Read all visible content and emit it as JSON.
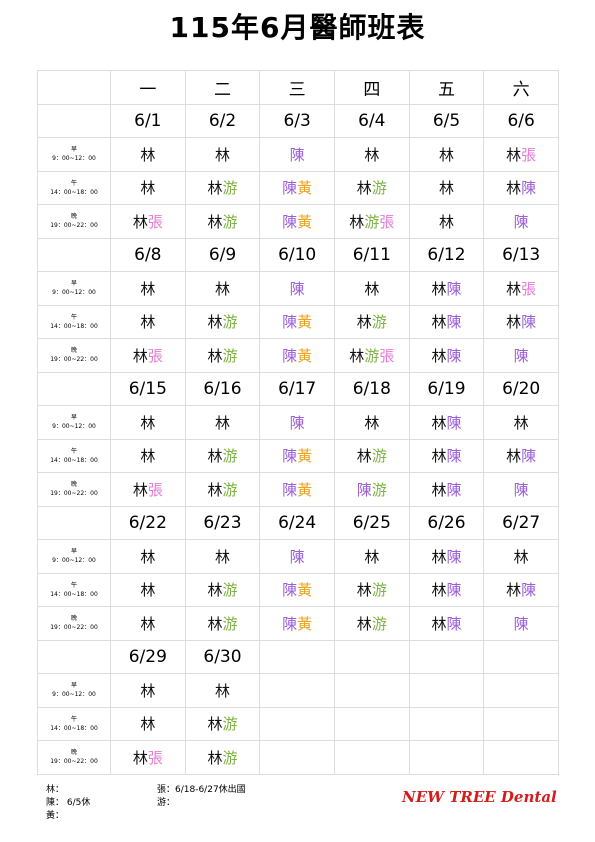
{
  "header": {
    "title": "115年6月醫師班表"
  },
  "doctors": [
    {
      "name": "林",
      "color": "#111111"
    },
    {
      "name": "張",
      "color": "#e57ad6"
    },
    {
      "name": "游",
      "color": "#7cb342"
    },
    {
      "name": "陳",
      "color": "#9b5fd8"
    },
    {
      "name": "黃",
      "color": "#efa21c"
    }
  ],
  "weekdays": [
    "一",
    "二",
    "三",
    "四",
    "五",
    "六"
  ],
  "shifts": [
    {
      "name": "早",
      "time": "9：00~12：00"
    },
    {
      "name": "午",
      "time": "14：00~18：00"
    },
    {
      "name": "晚",
      "time": "19：00~22：00"
    }
  ],
  "weeks": [
    {
      "dates": [
        "6/1",
        "6/2",
        "6/3",
        "6/4",
        "6/5",
        "6/6"
      ],
      "rows": [
        [
          [
            "林"
          ],
          [
            "林"
          ],
          [
            "陳"
          ],
          [
            "林"
          ],
          [
            "林"
          ],
          [
            "林",
            "張"
          ]
        ],
        [
          [
            "林"
          ],
          [
            "林",
            "游"
          ],
          [
            "陳",
            "黃"
          ],
          [
            "林",
            "游"
          ],
          [
            "林"
          ],
          [
            "林",
            "陳"
          ]
        ],
        [
          [
            "林",
            "張"
          ],
          [
            "林",
            "游"
          ],
          [
            "陳",
            "黃"
          ],
          [
            "林",
            "游",
            "張"
          ],
          [
            "林"
          ],
          [
            "陳"
          ]
        ]
      ]
    },
    {
      "dates": [
        "6/8",
        "6/9",
        "6/10",
        "6/11",
        "6/12",
        "6/13"
      ],
      "rows": [
        [
          [
            "林"
          ],
          [
            "林"
          ],
          [
            "陳"
          ],
          [
            "林"
          ],
          [
            "林",
            "陳"
          ],
          [
            "林",
            "張"
          ]
        ],
        [
          [
            "林"
          ],
          [
            "林",
            "游"
          ],
          [
            "陳",
            "黃"
          ],
          [
            "林",
            "游"
          ],
          [
            "林",
            "陳"
          ],
          [
            "林",
            "陳"
          ]
        ],
        [
          [
            "林",
            "張"
          ],
          [
            "林",
            "游"
          ],
          [
            "陳",
            "黃"
          ],
          [
            "林",
            "游",
            "張"
          ],
          [
            "林",
            "陳"
          ],
          [
            "陳"
          ]
        ]
      ]
    },
    {
      "dates": [
        "6/15",
        "6/16",
        "6/17",
        "6/18",
        "6/19",
        "6/20"
      ],
      "rows": [
        [
          [
            "林"
          ],
          [
            "林"
          ],
          [
            "陳"
          ],
          [
            "林"
          ],
          [
            "林",
            "陳"
          ],
          [
            "林"
          ]
        ],
        [
          [
            "林"
          ],
          [
            "林",
            "游"
          ],
          [
            "陳",
            "黃"
          ],
          [
            "林",
            "游"
          ],
          [
            "林",
            "陳"
          ],
          [
            "林",
            "陳"
          ]
        ],
        [
          [
            "林",
            "張"
          ],
          [
            "林",
            "游"
          ],
          [
            "陳",
            "黃"
          ],
          [
            "陳",
            "游"
          ],
          [
            "林",
            "陳"
          ],
          [
            "陳"
          ]
        ]
      ]
    },
    {
      "dates": [
        "6/22",
        "6/23",
        "6/24",
        "6/25",
        "6/26",
        "6/27"
      ],
      "rows": [
        [
          [
            "林"
          ],
          [
            "林"
          ],
          [
            "陳"
          ],
          [
            "林"
          ],
          [
            "林",
            "陳"
          ],
          [
            "林"
          ]
        ],
        [
          [
            "林"
          ],
          [
            "林",
            "游"
          ],
          [
            "陳",
            "黃"
          ],
          [
            "林",
            "游"
          ],
          [
            "林",
            "陳"
          ],
          [
            "林",
            "陳"
          ]
        ],
        [
          [
            "林"
          ],
          [
            "林",
            "游"
          ],
          [
            "陳",
            "黃"
          ],
          [
            "林",
            "游"
          ],
          [
            "林",
            "陳"
          ],
          [
            "陳"
          ]
        ]
      ]
    },
    {
      "dates": [
        "6/29",
        "6/30"
      ],
      "rows": [
        [
          [
            "林"
          ],
          [
            "林"
          ]
        ],
        [
          [
            "林"
          ],
          [
            "林",
            "游"
          ]
        ],
        [
          [
            "林",
            "張"
          ],
          [
            "林",
            "游"
          ]
        ]
      ]
    }
  ],
  "notes": {
    "left": [
      "林：",
      "陳： 6/5休",
      "黃："
    ],
    "right": [
      "張：6/18-6/27休出國",
      "游："
    ]
  },
  "brand": "NEW TREE Dental"
}
